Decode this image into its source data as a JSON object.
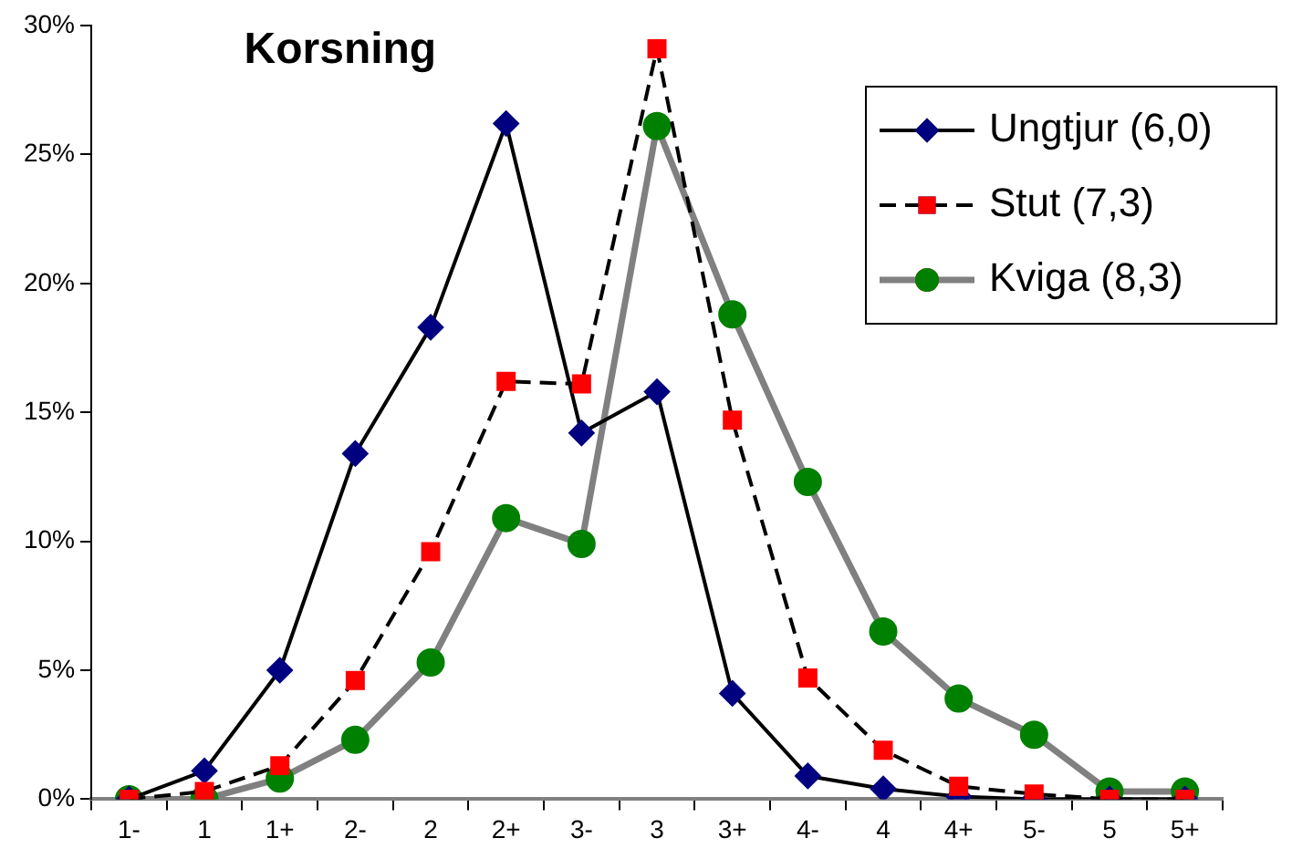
{
  "chart_data": {
    "type": "line",
    "title": "Korsning",
    "categories": [
      "1-",
      "1",
      "1+",
      "2-",
      "2",
      "2+",
      "3-",
      "3",
      "3+",
      "4-",
      "4",
      "4+",
      "5-",
      "5",
      "5+"
    ],
    "series": [
      {
        "name": "Ungtjur (6,0)",
        "color": "#000080",
        "marker": "diamond",
        "line_style": "solid",
        "values": [
          0,
          1.1,
          5.0,
          13.4,
          18.3,
          26.2,
          14.2,
          15.8,
          4.1,
          0.9,
          0.4,
          0.1,
          0,
          0,
          0
        ]
      },
      {
        "name": "Stut (7,3)",
        "color": "#ff0000",
        "marker": "square",
        "line_style": "dashed",
        "values": [
          0,
          0.3,
          1.3,
          4.6,
          9.6,
          16.2,
          16.1,
          29.1,
          14.7,
          4.7,
          1.9,
          0.5,
          0.2,
          0,
          0
        ]
      },
      {
        "name": "Kviga (8,3)",
        "color": "#008000",
        "marker": "circle",
        "line_style": "solid",
        "values": [
          0,
          0,
          0.8,
          2.3,
          5.3,
          10.9,
          9.9,
          26.1,
          18.8,
          12.3,
          6.5,
          3.9,
          2.5,
          0.3,
          0.3
        ]
      }
    ],
    "ylim": [
      0,
      30
    ],
    "yticks": [
      {
        "value": 0,
        "label": "0%"
      },
      {
        "value": 5,
        "label": "5%"
      },
      {
        "value": 10,
        "label": "10%"
      },
      {
        "value": 15,
        "label": "15%"
      },
      {
        "value": 20,
        "label": "20%"
      },
      {
        "value": 25,
        "label": "25%"
      },
      {
        "value": 30,
        "label": "30%"
      }
    ],
    "grid": false,
    "legend": "top right"
  }
}
